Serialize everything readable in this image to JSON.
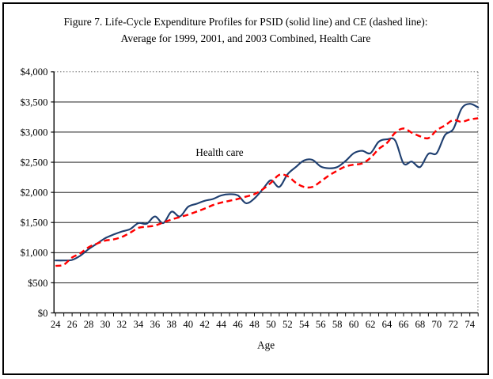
{
  "figure": {
    "title_line1": "Figure 7. Life-Cycle Expenditure Profiles for PSID (solid line) and CE (dashed line):",
    "title_line2": "Average for 1999, 2001, and 2003 Combined, Health Care"
  },
  "chart_data": {
    "type": "line",
    "title": "Figure 7. Life-Cycle Expenditure Profiles for PSID (solid line) and CE (dashed line): Average for 1999, 2001, and 2003 Combined, Health Care",
    "xlabel": "Age",
    "ylabel": "",
    "grid": true,
    "legend_position": "none",
    "annotation": {
      "text": "Health care",
      "x": 43.8,
      "y": 2660
    },
    "xlim": [
      23.8,
      75.2
    ],
    "ylim": [
      0,
      4000
    ],
    "y_tick_step": 500,
    "y_tick_values": [
      0,
      500,
      1000,
      1500,
      2000,
      2500,
      3000,
      3500,
      4000
    ],
    "y_tick_labels": [
      "$0",
      "$500",
      "$1,000",
      "$1,500",
      "$2,000",
      "$2,500",
      "$3,000",
      "$3,500",
      "$4,000"
    ],
    "x_major_ticks": [
      24,
      26,
      28,
      30,
      32,
      34,
      36,
      38,
      40,
      42,
      44,
      46,
      48,
      50,
      52,
      54,
      56,
      58,
      60,
      62,
      64,
      66,
      68,
      70,
      72,
      74
    ],
    "x_major_tick_labels": [
      "24",
      "26",
      "28",
      "30",
      "32",
      "34",
      "36",
      "38",
      "40",
      "42",
      "44",
      "46",
      "48",
      "50",
      "52",
      "54",
      "56",
      "58",
      "60",
      "62",
      "64",
      "66",
      "68",
      "70",
      "72",
      "74"
    ],
    "x_minor_tick_step": 1,
    "x": [
      24,
      25,
      26,
      27,
      28,
      29,
      30,
      31,
      32,
      33,
      34,
      35,
      36,
      37,
      38,
      39,
      40,
      41,
      42,
      43,
      44,
      45,
      46,
      47,
      48,
      49,
      50,
      51,
      52,
      53,
      54,
      55,
      56,
      57,
      58,
      59,
      60,
      61,
      62,
      63,
      64,
      65,
      66,
      67,
      68,
      69,
      70,
      71,
      72,
      73,
      74,
      75
    ],
    "series": [
      {
        "name": "PSID",
        "line_style": "solid",
        "color": "#1F3F70",
        "values": [
          870,
          870,
          880,
          950,
          1060,
          1150,
          1240,
          1300,
          1350,
          1390,
          1490,
          1480,
          1600,
          1490,
          1680,
          1600,
          1760,
          1810,
          1860,
          1890,
          1950,
          1970,
          1950,
          1820,
          1900,
          2050,
          2200,
          2090,
          2300,
          2420,
          2530,
          2540,
          2430,
          2400,
          2420,
          2520,
          2650,
          2690,
          2650,
          2840,
          2880,
          2860,
          2480,
          2510,
          2420,
          2640,
          2650,
          2950,
          3050,
          3390,
          3470,
          3410
        ]
      },
      {
        "name": "CE",
        "line_style": "dashed",
        "color": "#FF0000",
        "values": [
          780,
          800,
          920,
          990,
          1090,
          1150,
          1200,
          1220,
          1260,
          1330,
          1410,
          1430,
          1450,
          1500,
          1550,
          1590,
          1630,
          1680,
          1730,
          1790,
          1830,
          1860,
          1890,
          1930,
          1970,
          2050,
          2160,
          2290,
          2270,
          2160,
          2090,
          2090,
          2180,
          2280,
          2360,
          2430,
          2460,
          2480,
          2570,
          2720,
          2820,
          2990,
          3060,
          2990,
          2930,
          2900,
          3030,
          3110,
          3200,
          3170,
          3210,
          3230
        ]
      }
    ]
  }
}
